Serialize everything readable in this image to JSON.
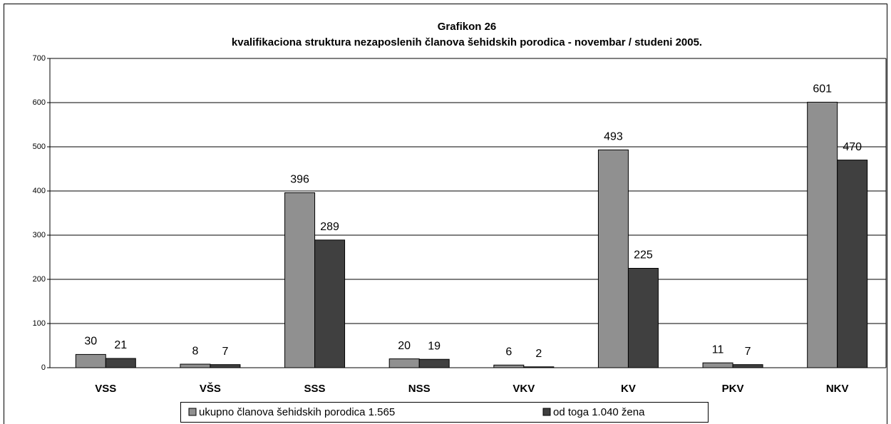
{
  "chart_data": {
    "type": "bar",
    "title": "Grafikon 26",
    "subtitle": "kvalifikaciona struktura nezaposlenih članova šehidskih porodica - novembar / studeni 2005.",
    "categories": [
      "VSS",
      "VŠS",
      "SSS",
      "NSS",
      "VKV",
      "KV",
      "PKV",
      "NKV"
    ],
    "series": [
      {
        "name": "ukupno članova šehidskih porodica 1.565",
        "color": "#909090",
        "values": [
          30,
          8,
          396,
          20,
          6,
          493,
          11,
          601
        ]
      },
      {
        "name": "od toga 1.040 žena",
        "color": "#404040",
        "values": [
          21,
          7,
          289,
          19,
          2,
          225,
          7,
          470
        ]
      }
    ],
    "ylim": [
      0,
      700
    ],
    "yticks": [
      0,
      100,
      200,
      300,
      400,
      500,
      600,
      700
    ],
    "grid": true,
    "legend": "bottom"
  }
}
